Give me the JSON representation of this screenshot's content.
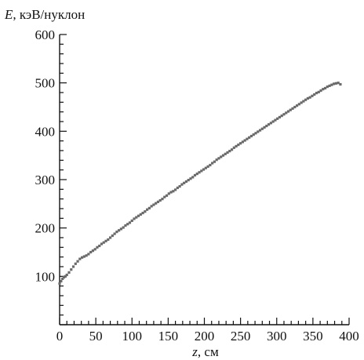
{
  "chart_data": {
    "type": "scatter",
    "title": "",
    "ylabel": {
      "symbol": "E",
      "unit": ", кэВ/нуклон"
    },
    "xlabel": {
      "symbol": "z",
      "unit": ", см"
    },
    "xlim": [
      0,
      400
    ],
    "ylim": [
      0,
      600
    ],
    "xticks": [
      "0",
      "50",
      "100",
      "150",
      "200",
      "250",
      "300",
      "350",
      "400"
    ],
    "yticks": [
      "100",
      "200",
      "300",
      "400",
      "500",
      "600"
    ],
    "xminor_step": 10,
    "yminor_step": 20,
    "grid": false,
    "legend": "none",
    "marker_color": "#6a6a6a",
    "series": [
      {
        "points": [
          [
            0,
            85
          ],
          [
            2,
            90
          ],
          [
            4,
            95
          ],
          [
            6,
            98
          ],
          [
            8,
            100
          ],
          [
            10,
            103
          ],
          [
            13,
            108
          ],
          [
            16,
            114
          ],
          [
            19,
            120
          ],
          [
            22,
            126
          ],
          [
            25,
            131
          ],
          [
            28,
            136
          ],
          [
            31,
            139
          ],
          [
            34,
            141
          ],
          [
            37,
            143
          ],
          [
            40,
            146
          ],
          [
            43,
            150
          ],
          [
            46,
            153
          ],
          [
            49,
            156
          ],
          [
            52,
            160
          ],
          [
            55,
            163
          ],
          [
            58,
            167
          ],
          [
            61,
            170
          ],
          [
            64,
            173
          ],
          [
            67,
            176
          ],
          [
            70,
            180
          ],
          [
            73,
            184
          ],
          [
            76,
            188
          ],
          [
            79,
            192
          ],
          [
            82,
            195
          ],
          [
            85,
            198
          ],
          [
            88,
            201
          ],
          [
            91,
            205
          ],
          [
            94,
            208
          ],
          [
            97,
            211
          ],
          [
            100,
            215
          ],
          [
            103,
            219
          ],
          [
            106,
            222
          ],
          [
            109,
            225
          ],
          [
            112,
            228
          ],
          [
            115,
            231
          ],
          [
            118,
            234
          ],
          [
            121,
            238
          ],
          [
            124,
            241
          ],
          [
            127,
            245
          ],
          [
            130,
            248
          ],
          [
            133,
            251
          ],
          [
            136,
            254
          ],
          [
            139,
            257
          ],
          [
            142,
            260
          ],
          [
            145,
            264
          ],
          [
            148,
            267
          ],
          [
            151,
            271
          ],
          [
            154,
            274
          ],
          [
            157,
            276
          ],
          [
            160,
            279
          ],
          [
            163,
            283
          ],
          [
            166,
            286
          ],
          [
            169,
            290
          ],
          [
            172,
            293
          ],
          [
            175,
            296
          ],
          [
            178,
            299
          ],
          [
            181,
            302
          ],
          [
            184,
            305
          ],
          [
            187,
            309
          ],
          [
            190,
            312
          ],
          [
            193,
            315
          ],
          [
            196,
            318
          ],
          [
            199,
            321
          ],
          [
            202,
            324
          ],
          [
            205,
            327
          ],
          [
            208,
            330
          ],
          [
            211,
            334
          ],
          [
            214,
            337
          ],
          [
            217,
            341
          ],
          [
            220,
            344
          ],
          [
            223,
            347
          ],
          [
            226,
            350
          ],
          [
            229,
            353
          ],
          [
            232,
            356
          ],
          [
            235,
            359
          ],
          [
            238,
            362
          ],
          [
            241,
            366
          ],
          [
            244,
            369
          ],
          [
            247,
            372
          ],
          [
            250,
            375
          ],
          [
            253,
            378
          ],
          [
            256,
            381
          ],
          [
            259,
            384
          ],
          [
            262,
            387
          ],
          [
            265,
            390
          ],
          [
            268,
            393
          ],
          [
            271,
            396
          ],
          [
            274,
            399
          ],
          [
            277,
            402
          ],
          [
            280,
            405
          ],
          [
            283,
            408
          ],
          [
            286,
            411
          ],
          [
            289,
            414
          ],
          [
            292,
            417
          ],
          [
            295,
            420
          ],
          [
            298,
            423
          ],
          [
            301,
            426
          ],
          [
            304,
            429
          ],
          [
            307,
            432
          ],
          [
            310,
            435
          ],
          [
            313,
            438
          ],
          [
            316,
            441
          ],
          [
            319,
            444
          ],
          [
            322,
            447
          ],
          [
            325,
            450
          ],
          [
            328,
            453
          ],
          [
            331,
            456
          ],
          [
            334,
            459
          ],
          [
            337,
            462
          ],
          [
            340,
            465
          ],
          [
            343,
            468
          ],
          [
            346,
            470
          ],
          [
            349,
            473
          ],
          [
            352,
            476
          ],
          [
            355,
            479
          ],
          [
            358,
            481
          ],
          [
            361,
            484
          ],
          [
            364,
            487
          ],
          [
            367,
            489
          ],
          [
            370,
            492
          ],
          [
            373,
            494
          ],
          [
            376,
            496
          ],
          [
            379,
            498
          ],
          [
            382,
            499
          ],
          [
            385,
            500
          ],
          [
            388,
            497
          ]
        ]
      }
    ]
  }
}
